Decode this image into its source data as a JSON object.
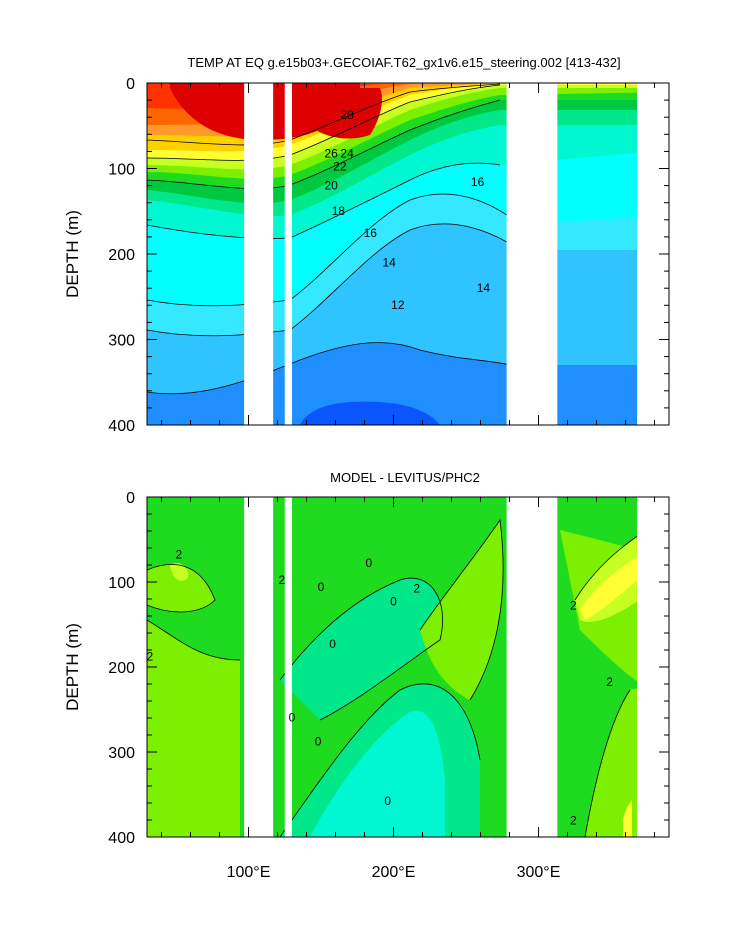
{
  "chart_data": [
    {
      "type": "contour",
      "title": "TEMP AT EQ g.e15b03+.GECOIAF.T62_gx1v6.e15_steering.002 [413-432]",
      "ylabel": "DEPTH (m)",
      "xlabel": "",
      "xlim": [
        30,
        390
      ],
      "ylim": [
        0,
        400
      ],
      "y_inverted": true,
      "x_tick_labels": [
        "100°E",
        "200°E",
        "300°E"
      ],
      "x_ticks": [
        100,
        200,
        300
      ],
      "y_ticks": [
        0,
        100,
        200,
        300,
        400
      ],
      "y_tick_labels": [
        "0",
        "100",
        "200",
        "300",
        "400"
      ],
      "contour_interval": 1,
      "labeled_contours": [
        {
          "label": "28",
          "x": 168,
          "y": 40
        },
        {
          "label": "26",
          "x": 157,
          "y": 85
        },
        {
          "label": "24",
          "x": 168,
          "y": 85
        },
        {
          "label": "22",
          "x": 163,
          "y": 100
        },
        {
          "label": "20",
          "x": 157,
          "y": 122
        },
        {
          "label": "18",
          "x": 162,
          "y": 152
        },
        {
          "label": "16",
          "x": 184,
          "y": 178
        },
        {
          "label": "14",
          "x": 197,
          "y": 212
        },
        {
          "label": "12",
          "x": 203,
          "y": 262
        },
        {
          "label": "16",
          "x": 258,
          "y": 118
        },
        {
          "label": "14",
          "x": 262,
          "y": 242
        }
      ],
      "missing_data_longitudes": [
        [
          97,
          117
        ],
        [
          125,
          130
        ],
        [
          278,
          313
        ],
        [
          368,
          390
        ]
      ],
      "colors": {
        "above_28": "#dd0000",
        "warm": [
          "#ff3300",
          "#ff6600",
          "#ff9a2a",
          "#ffd000",
          "#ffff33"
        ],
        "mid": [
          "#c8ff22",
          "#7cf000",
          "#1fdb1f",
          "#00c840"
        ],
        "cool": [
          "#00e88a",
          "#00f7d2",
          "#00ffff",
          "#33e8ff",
          "#2fc4ff",
          "#1f8eff",
          "#0a55ff"
        ]
      }
    },
    {
      "type": "contour",
      "title": "MODEL - LEVITUS/PHC2",
      "ylabel": "DEPTH (m)",
      "xlabel": "",
      "xlim": [
        30,
        390
      ],
      "ylim": [
        0,
        400
      ],
      "y_inverted": true,
      "x_tick_labels": [
        "100°E",
        "200°E",
        "300°E"
      ],
      "x_ticks": [
        100,
        200,
        300
      ],
      "y_ticks": [
        0,
        100,
        200,
        300,
        400
      ],
      "y_tick_labels": [
        "0",
        "100",
        "200",
        "300",
        "400"
      ],
      "contour_interval": 1,
      "labeled_contours": [
        {
          "label": "2",
          "x": 52,
          "y": 70
        },
        {
          "label": "2",
          "x": 32,
          "y": 190
        },
        {
          "label": "2",
          "x": 123,
          "y": 100
        },
        {
          "label": "0",
          "x": 150,
          "y": 108
        },
        {
          "label": "0",
          "x": 183,
          "y": 80
        },
        {
          "label": "0",
          "x": 200,
          "y": 125
        },
        {
          "label": "0",
          "x": 158,
          "y": 175
        },
        {
          "label": "0",
          "x": 130,
          "y": 262
        },
        {
          "label": "0",
          "x": 148,
          "y": 290
        },
        {
          "label": "0",
          "x": 196,
          "y": 360
        },
        {
          "label": "2",
          "x": 216,
          "y": 110
        },
        {
          "label": "2",
          "x": 349,
          "y": 220
        },
        {
          "label": "2",
          "x": 324,
          "y": 130
        },
        {
          "label": "2",
          "x": 324,
          "y": 383
        }
      ],
      "missing_data_longitudes": [
        [
          97,
          117
        ],
        [
          125,
          130
        ],
        [
          278,
          313
        ],
        [
          368,
          390
        ]
      ],
      "colors": {
        "strong_positive": "#ffff33",
        "positive": "#c8ff22",
        "weak_positive": "#7cf000",
        "near_zero_pos": "#1fdb1f",
        "near_zero_neg": "#00e88a",
        "negative": "#00f7d2"
      }
    }
  ]
}
